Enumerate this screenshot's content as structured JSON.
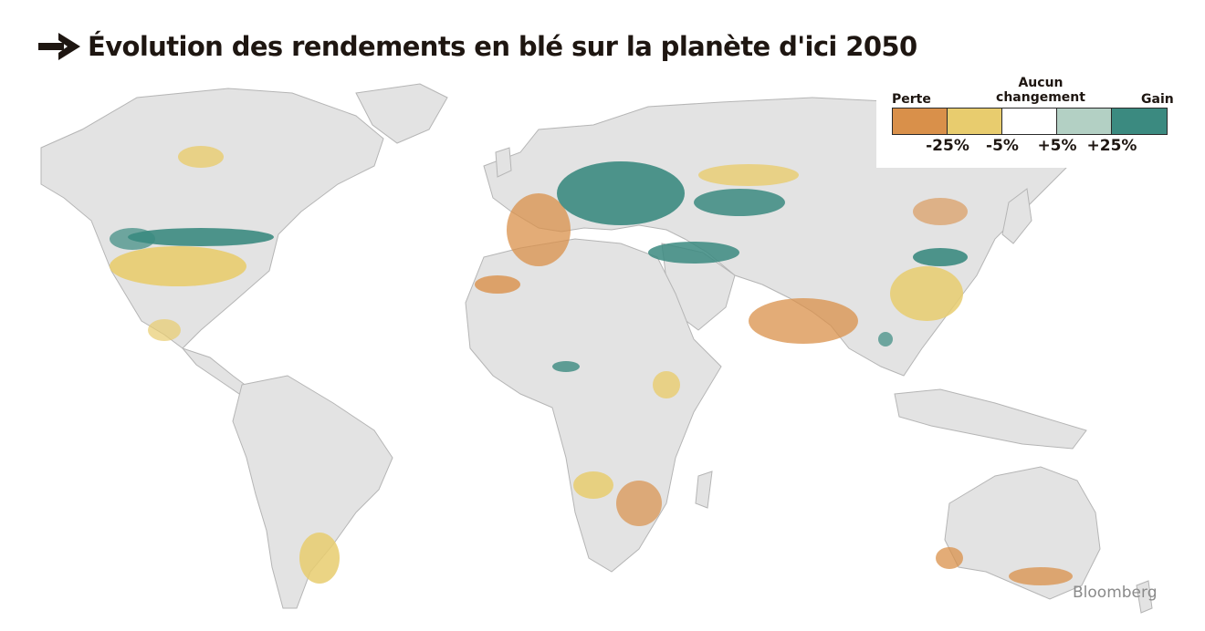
{
  "title": "Évolution des rendements en blé sur la planète d'ici 2050",
  "legend": {
    "loss_label": "Perte",
    "no_change_label": "Aucun changement",
    "gain_label": "Gain",
    "classes": [
      {
        "color": "#d9904a"
      },
      {
        "color": "#e8cc6e"
      },
      {
        "color": "#ffffff"
      },
      {
        "color": "#b3d0c4"
      },
      {
        "color": "#3b8a80"
      }
    ],
    "thresholds": [
      "-25%",
      "-5%",
      "+5%",
      "+25%"
    ]
  },
  "credit": "Bloomberg",
  "colors": {
    "land": "#e3e3e3",
    "borders": "#b5b5b5",
    "strong_loss": "#d9904a",
    "moderate_loss": "#e8cc6e",
    "moderate_gain": "#b3d0c4",
    "strong_gain": "#3b8a80"
  },
  "icons": {
    "title_marker": "arrow-right-icon"
  }
}
